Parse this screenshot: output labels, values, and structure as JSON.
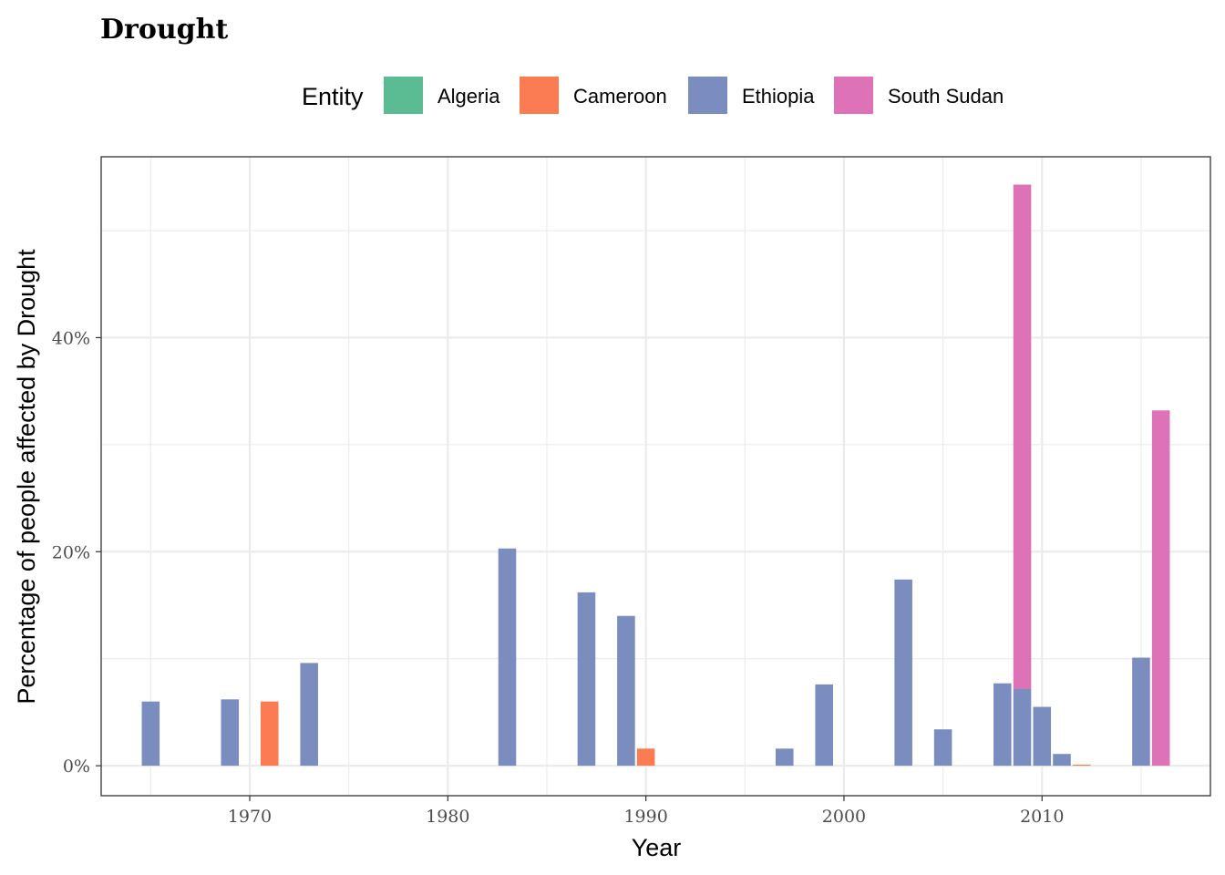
{
  "chart_data": {
    "type": "bar",
    "title": "Drought",
    "xlabel": "Year",
    "ylabel": "Percentage of people affected by Drought",
    "legend_title": "Entity",
    "legend_position": "top",
    "grid": true,
    "xlim": [
      1962.5,
      2018.5
    ],
    "ylim": [
      -2.8,
      56.9
    ],
    "x_ticks": [
      1970,
      1980,
      1990,
      2000,
      2010
    ],
    "x_tick_labels": [
      "1970",
      "1980",
      "1990",
      "2000",
      "2010"
    ],
    "y_ticks": [
      0,
      20,
      40
    ],
    "y_tick_labels": [
      "0%",
      "20%",
      "40%"
    ],
    "series": [
      {
        "name": "Algeria",
        "color": "#5bbc94",
        "points": []
      },
      {
        "name": "Cameroon",
        "color": "#fb7b52",
        "points": [
          {
            "x": 1971,
            "y": 6.0
          },
          {
            "x": 1990,
            "y": 1.6
          },
          {
            "x": 2012,
            "y": 0.1
          }
        ]
      },
      {
        "name": "Ethiopia",
        "color": "#7b8dbf",
        "points": [
          {
            "x": 1965,
            "y": 6.0
          },
          {
            "x": 1969,
            "y": 6.2
          },
          {
            "x": 1973,
            "y": 9.6
          },
          {
            "x": 1983,
            "y": 20.3
          },
          {
            "x": 1987,
            "y": 16.2
          },
          {
            "x": 1989,
            "y": 14.0
          },
          {
            "x": 1997,
            "y": 1.6
          },
          {
            "x": 1999,
            "y": 7.6
          },
          {
            "x": 2003,
            "y": 17.4
          },
          {
            "x": 2005,
            "y": 3.4
          },
          {
            "x": 2008,
            "y": 7.7
          },
          {
            "x": 2009,
            "y": 7.2
          },
          {
            "x": 2010,
            "y": 5.5
          },
          {
            "x": 2011,
            "y": 1.1
          },
          {
            "x": 2015,
            "y": 10.1
          }
        ]
      },
      {
        "name": "South Sudan",
        "color": "#de72b7",
        "points": [
          {
            "x": 2009,
            "y": 47.1
          },
          {
            "x": 2016,
            "y": 33.2
          }
        ]
      }
    ]
  }
}
